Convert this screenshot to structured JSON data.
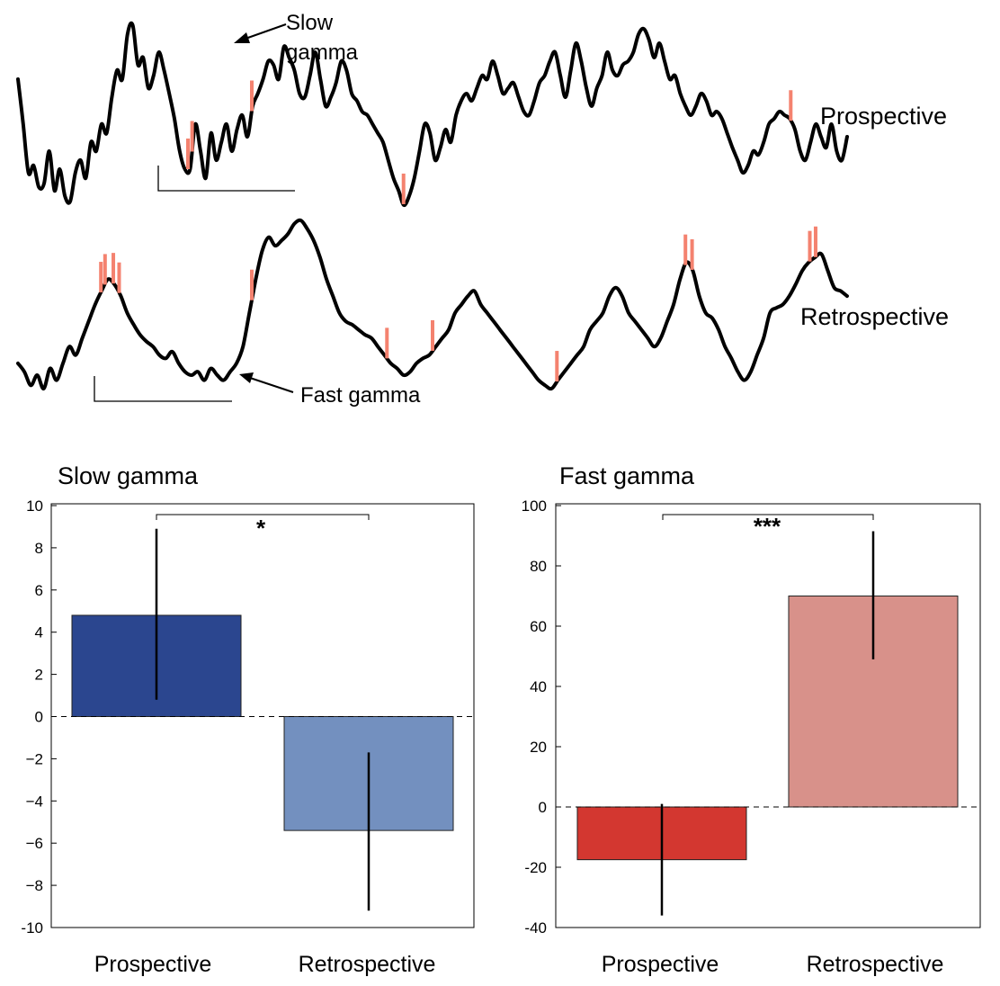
{
  "colors": {
    "trace": "#000000",
    "marker": "#F4826F",
    "slow_prospective": "#2B468F",
    "slow_retrospective": "#7390BF",
    "fast_prospective": "#D33730",
    "fast_retrospective": "#D8918A"
  },
  "traces": {
    "top": {
      "label": "Prospective",
      "annotation": "Slow\ngamma",
      "y": [
        0.7,
        0.45,
        0.18,
        0.22,
        0.1,
        0.12,
        0.3,
        0.08,
        0.2,
        0.05,
        0.02,
        0.18,
        0.25,
        0.15,
        0.35,
        0.3,
        0.45,
        0.4,
        0.6,
        0.75,
        0.7,
        0.95,
        1.0,
        0.78,
        0.82,
        0.65,
        0.72,
        0.85,
        0.75,
        0.62,
        0.48,
        0.3,
        0.2,
        0.2,
        0.45,
        0.3,
        0.15,
        0.4,
        0.25,
        0.35,
        0.45,
        0.3,
        0.42,
        0.5,
        0.38,
        0.55,
        0.62,
        0.7,
        0.8,
        0.78,
        0.7,
        0.88,
        0.82,
        0.75,
        0.62,
        0.6,
        0.72,
        0.85,
        0.7,
        0.55,
        0.6,
        0.68,
        0.8,
        0.75,
        0.62,
        0.58,
        0.52,
        0.5,
        0.45,
        0.4,
        0.35,
        0.25,
        0.15,
        0.08,
        0.0,
        0.05,
        0.15,
        0.3,
        0.45,
        0.4,
        0.25,
        0.32,
        0.42,
        0.35,
        0.5,
        0.58,
        0.62,
        0.58,
        0.65,
        0.72,
        0.7,
        0.8,
        0.72,
        0.62,
        0.65,
        0.68,
        0.6,
        0.52,
        0.5,
        0.58,
        0.68,
        0.72,
        0.8,
        0.85,
        0.72,
        0.6,
        0.75,
        0.9,
        0.8,
        0.65,
        0.55,
        0.65,
        0.72,
        0.85,
        0.75,
        0.72,
        0.78,
        0.8,
        0.85,
        0.95,
        0.98,
        0.92,
        0.82,
        0.9,
        0.8,
        0.7,
        0.72,
        0.62,
        0.55,
        0.5,
        0.55,
        0.62,
        0.58,
        0.5,
        0.52,
        0.48,
        0.4,
        0.32,
        0.25,
        0.18,
        0.22,
        0.3,
        0.28,
        0.35,
        0.45,
        0.48,
        0.52,
        0.5,
        0.48,
        0.42,
        0.3,
        0.25,
        0.35,
        0.45,
        0.38,
        0.32,
        0.45,
        0.3,
        0.25,
        0.38
      ],
      "marker_x": [
        0.205,
        0.21,
        0.282,
        0.465,
        0.932
      ]
    },
    "bottom": {
      "label": "Retrospective",
      "annotation": "Fast gamma",
      "y": [
        0.15,
        0.1,
        0.02,
        0.08,
        0.0,
        0.12,
        0.05,
        0.15,
        0.25,
        0.2,
        0.3,
        0.4,
        0.5,
        0.58,
        0.65,
        0.62,
        0.55,
        0.45,
        0.38,
        0.32,
        0.28,
        0.25,
        0.2,
        0.18,
        0.22,
        0.15,
        0.1,
        0.08,
        0.1,
        0.05,
        0.12,
        0.08,
        0.05,
        0.1,
        0.15,
        0.25,
        0.45,
        0.65,
        0.82,
        0.9,
        0.85,
        0.88,
        0.92,
        0.98,
        1.0,
        0.95,
        0.88,
        0.78,
        0.65,
        0.55,
        0.45,
        0.4,
        0.38,
        0.35,
        0.32,
        0.3,
        0.25,
        0.2,
        0.15,
        0.12,
        0.08,
        0.1,
        0.15,
        0.18,
        0.2,
        0.25,
        0.3,
        0.35,
        0.45,
        0.5,
        0.55,
        0.58,
        0.5,
        0.45,
        0.4,
        0.35,
        0.3,
        0.25,
        0.2,
        0.15,
        0.1,
        0.05,
        0.02,
        0.0,
        0.05,
        0.1,
        0.15,
        0.2,
        0.25,
        0.35,
        0.4,
        0.45,
        0.55,
        0.6,
        0.55,
        0.45,
        0.4,
        0.35,
        0.3,
        0.25,
        0.3,
        0.4,
        0.5,
        0.65,
        0.75,
        0.7,
        0.55,
        0.45,
        0.42,
        0.35,
        0.25,
        0.18,
        0.1,
        0.05,
        0.1,
        0.2,
        0.3,
        0.45,
        0.48,
        0.5,
        0.55,
        0.62,
        0.7,
        0.75,
        0.78,
        0.8,
        0.7,
        0.6,
        0.58,
        0.55
      ],
      "marker_x": [
        0.1,
        0.105,
        0.115,
        0.122,
        0.282,
        0.445,
        0.5,
        0.65,
        0.805,
        0.813,
        0.955,
        0.962
      ]
    }
  },
  "chart_data": [
    {
      "type": "bar",
      "title": "Slow gamma",
      "categories": [
        "Prospective",
        "Retrospective"
      ],
      "values": [
        4.8,
        -5.4
      ],
      "error_low": [
        0.8,
        -9.2
      ],
      "error_high": [
        8.9,
        -1.7
      ],
      "ylim": [
        -10,
        10
      ],
      "yticks": [
        "-10",
        "−8",
        "−6",
        "−4",
        "−2",
        "0",
        "2",
        "4",
        "6",
        "8",
        "10"
      ],
      "ytick_values": [
        -10,
        -8,
        -6,
        -4,
        -2,
        0,
        2,
        4,
        6,
        8,
        10
      ],
      "significance": "*"
    },
    {
      "type": "bar",
      "title": "Fast gamma",
      "categories": [
        "Prospective",
        "Retrospective"
      ],
      "values": [
        -17.5,
        70
      ],
      "error_low": [
        -36,
        49
      ],
      "error_high": [
        1,
        91.5
      ],
      "ylim": [
        -40,
        100
      ],
      "yticks": [
        "-40",
        "-20",
        "0",
        "20",
        "40",
        "60",
        "80",
        "100"
      ],
      "ytick_values": [
        -40,
        -20,
        0,
        20,
        40,
        60,
        80,
        100
      ],
      "significance": "***"
    }
  ]
}
